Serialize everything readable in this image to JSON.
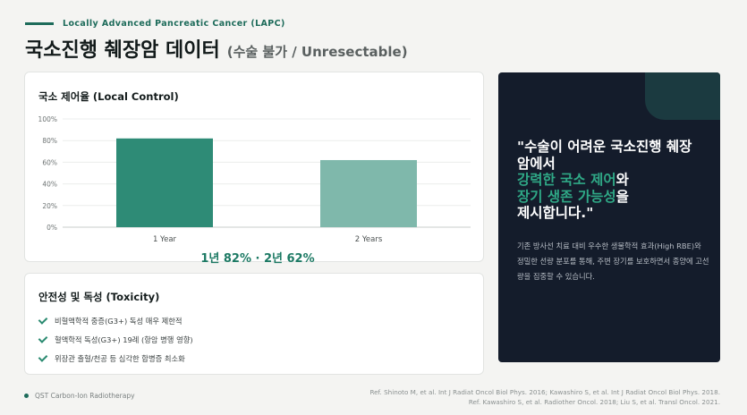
{
  "header": {
    "kicker": "Locally Advanced Pancreatic Cancer (LAPC)",
    "title": "국소진행 췌장암 데이터",
    "subtitle": "(수술 불가 / Unresectable)"
  },
  "chart_card": {
    "title": "국소 제어율 (Local Control)",
    "summary": "1년 82% · 2년 62%"
  },
  "chart_data": {
    "type": "bar",
    "categories": [
      "1 Year",
      "2 Years"
    ],
    "values": [
      82,
      62
    ],
    "ylim": [
      0,
      100
    ],
    "yticks": [
      "0%",
      "20%",
      "40%",
      "60%",
      "80%",
      "100%"
    ],
    "bar_colors": [
      "#2e8b76",
      "#7fb8ab"
    ],
    "grid": true
  },
  "toxicity": {
    "title": "안전성 및 독성 (Toxicity)",
    "items": [
      "비혈액학적 중증(G3+) 독성 매우 제한적",
      "혈액학적 독성(G3+) 19례 (항암 병행 영향)",
      "위장관 출혈/천공 등 심각한 합병증 최소화"
    ]
  },
  "quote": {
    "line1": "\"수술이 어려운 국소진행 췌장",
    "line2": "암에서",
    "hl1": "강력한 국소 제어",
    "post1": "와",
    "hl2": "장기 생존 가능성",
    "post2": "을",
    "line5": "제시합니다.\""
  },
  "description": "기존 방사선 치료 대비 우수한 생물학적 효과(High RBE)와 정밀한 선량 분포를 통해, 주변 장기를 보호하면서 종양에 고선량을 집중할 수 있습니다.",
  "footer": {
    "brand": "QST Carbon-Ion Radiotherapy",
    "ref_line1": "Ref. Shinoto M, et al. Int J Radiat Oncol Biol Phys. 2016; Kawashiro S, et al. Int J Radiat Oncol Biol Phys. 2018.",
    "ref_line2": "Ref. Kawashiro S, et al. Radiother Oncol. 2018; Liu S, et al. Transl Oncol. 2021."
  },
  "colors": {
    "accent": "#1d6b5a",
    "highlight": "#2fa886",
    "dark_panel": "#141c2b"
  }
}
